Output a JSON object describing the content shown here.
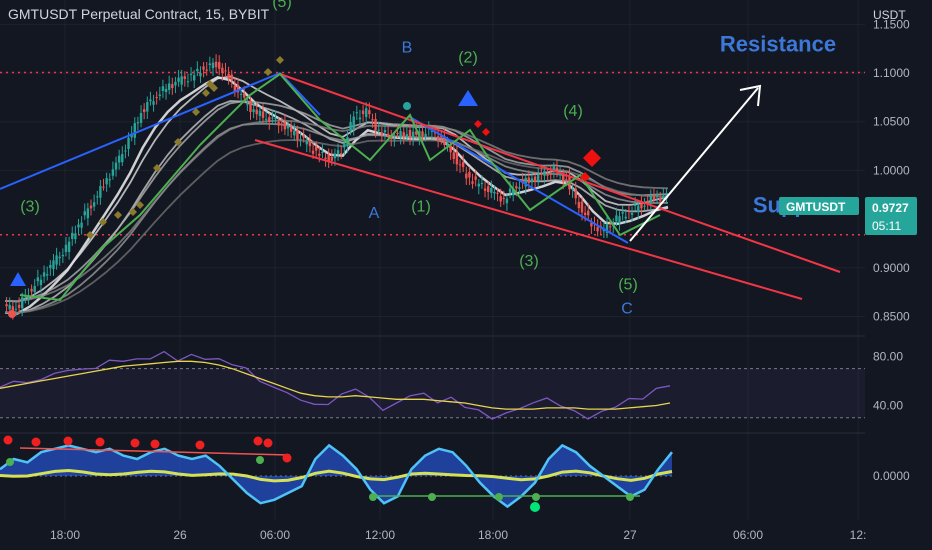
{
  "header": {
    "symbol_title": "GMTUSDT Perpetual Contract, 15, BYBIT",
    "unit": "USDT"
  },
  "colors": {
    "background": "#131722",
    "bull": "#26a69a",
    "bear": "#ef5350",
    "channel": "#f23645",
    "blue_line": "#2962ff",
    "green_wave": "#4caf50",
    "blue_label": "#3c78d8",
    "rsi_line": "#7e57c2",
    "rsi_ma": "#e8d44d",
    "osc_blue": "#2196f3",
    "osc_cyan": "#4fc3f7",
    "osc_yellow": "#d4e157"
  },
  "chart_data": [
    {
      "type": "candlestick",
      "title": "GMTUSDT Perpetual Contract, 15, BYBIT",
      "ylim": [
        0.83,
        1.175
      ],
      "y_ticks": [
        "1.1500",
        "1.1000",
        "1.0500",
        "1.0000",
        "0.9000",
        "0.8500"
      ],
      "x_ticks": [
        "18:00",
        "26",
        "06:00",
        "12:00",
        "18:00",
        "27",
        "06:00",
        "12:"
      ],
      "last_price": {
        "value": "0.9727",
        "symbol": "GMTUSDT",
        "countdown": "05:11"
      },
      "levels": [
        {
          "name": "Resistance",
          "value": 1.1005,
          "style": "dotted",
          "color": "#f23645"
        },
        {
          "name": "Support",
          "value": 0.934,
          "style": "dotted",
          "color": "#f23645"
        }
      ],
      "close_path": [
        0.86,
        0.858,
        0.875,
        0.89,
        0.905,
        0.92,
        0.945,
        0.965,
        0.985,
        1.005,
        1.03,
        1.06,
        1.075,
        1.085,
        1.092,
        1.096,
        1.105,
        1.11,
        1.095,
        1.075,
        1.06,
        1.055,
        1.05,
        1.04,
        1.03,
        1.018,
        1.012,
        1.02,
        1.055,
        1.06,
        1.04,
        1.035,
        1.038,
        1.036,
        1.04,
        1.033,
        1.015,
        0.995,
        0.985,
        0.978,
        0.97,
        0.985,
        0.99,
        0.994,
        1.0,
        0.99,
        0.965,
        0.945,
        0.938,
        0.95,
        0.958,
        0.965,
        0.972,
        0.9727
      ],
      "annotations": [
        {
          "text": "(3)",
          "style": "green",
          "price": 0.958
        },
        {
          "text": "(5)",
          "style": "green",
          "price": 1.168
        },
        {
          "text": "B",
          "style": "blue",
          "price": 1.121
        },
        {
          "text": "(2)",
          "style": "green",
          "price": 1.111
        },
        {
          "text": "(4)",
          "style": "green",
          "price": 1.056
        },
        {
          "text": "A",
          "style": "blue",
          "price": 0.951
        },
        {
          "text": "(1)",
          "style": "green",
          "price": 0.958
        },
        {
          "text": "(3)",
          "style": "green",
          "price": 0.902
        },
        {
          "text": "(5)",
          "style": "green",
          "price": 0.878
        },
        {
          "text": "C",
          "style": "blue",
          "price": 0.853
        },
        {
          "text": "Resistance",
          "style": "big",
          "price": 1.122
        },
        {
          "text": "Support",
          "style": "big",
          "price": 0.957
        }
      ]
    },
    {
      "type": "line",
      "title": "",
      "ylim": [
        20,
        95
      ],
      "y_ticks": [
        "80.00",
        "40.00"
      ],
      "band": [
        30,
        70
      ],
      "rsi": [
        55,
        60,
        58,
        62,
        65,
        70,
        68,
        72,
        75,
        78,
        76,
        80,
        82,
        78,
        80,
        79,
        77,
        74,
        70,
        60,
        55,
        50,
        45,
        40,
        42,
        48,
        55,
        45,
        38,
        40,
        50,
        48,
        44,
        45,
        40,
        35,
        30,
        33,
        38,
        42,
        46,
        40,
        35,
        30,
        34,
        40,
        44,
        47,
        52,
        58
      ],
      "rsi_ma": [
        54,
        56,
        58,
        60,
        62,
        64,
        66,
        68,
        70,
        72,
        73,
        74,
        75,
        76,
        76,
        75,
        73,
        70,
        66,
        62,
        58,
        54,
        50,
        48,
        47,
        47,
        48,
        47,
        46,
        45,
        45,
        45,
        44,
        43,
        42,
        40,
        38,
        37,
        37,
        37,
        38,
        38,
        38,
        37,
        37,
        37,
        38,
        39,
        40,
        42
      ]
    },
    {
      "type": "line",
      "title": "",
      "ylim": [
        -1,
        1
      ],
      "y_ticks": [
        "0.0000"
      ],
      "wave1": [
        0.2,
        0.5,
        0.4,
        0.7,
        0.8,
        0.9,
        0.8,
        0.7,
        0.8,
        0.6,
        0.5,
        0.7,
        0.8,
        0.6,
        0.5,
        0.6,
        0.3,
        -0.1,
        -0.5,
        -0.8,
        -0.7,
        -0.5,
        -0.3,
        0.5,
        0.9,
        0.6,
        0.2,
        -0.4,
        -0.8,
        -0.6,
        0.2,
        0.6,
        0.8,
        0.7,
        0.3,
        -0.2,
        -0.6,
        -0.9,
        -0.6,
        -0.2,
        0.5,
        0.9,
        0.7,
        0.3,
        0.0,
        -0.3,
        -0.6,
        -0.4,
        0.2,
        0.7
      ],
      "wave2": [
        0.1,
        0.3,
        0.35,
        0.5,
        0.6,
        0.7,
        0.7,
        0.65,
        0.65,
        0.55,
        0.5,
        0.55,
        0.6,
        0.55,
        0.5,
        0.5,
        0.3,
        0.0,
        -0.3,
        -0.6,
        -0.6,
        -0.5,
        -0.3,
        0.2,
        0.6,
        0.5,
        0.2,
        -0.2,
        -0.6,
        -0.5,
        0.0,
        0.4,
        0.6,
        0.6,
        0.3,
        -0.1,
        -0.5,
        -0.7,
        -0.6,
        -0.2,
        0.3,
        0.7,
        0.6,
        0.3,
        0.0,
        -0.2,
        -0.5,
        -0.4,
        0.1,
        0.5
      ]
    }
  ]
}
